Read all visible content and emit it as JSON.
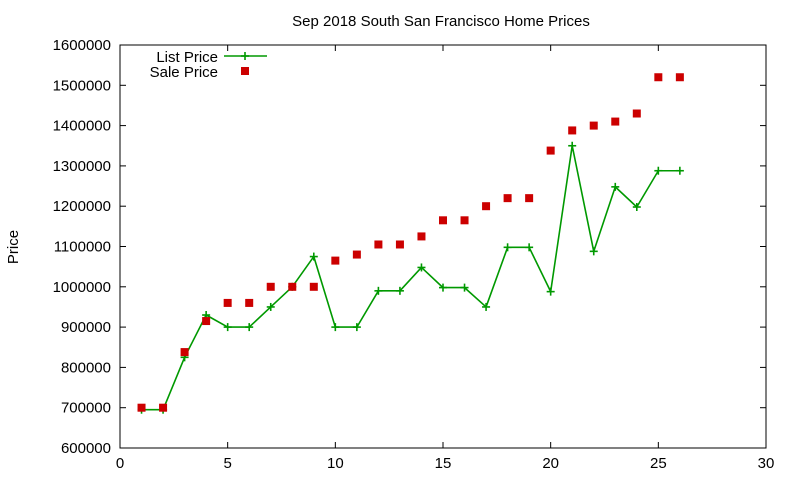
{
  "chart_data": {
    "type": "line",
    "title": "Sep 2018 South San Francisco Home Prices",
    "xlabel": "",
    "ylabel": "Price",
    "xlim": [
      0,
      30
    ],
    "ylim": [
      600000,
      1600000
    ],
    "x_ticks": [
      0,
      5,
      10,
      15,
      20,
      25,
      30
    ],
    "y_ticks": [
      600000,
      700000,
      800000,
      900000,
      1000000,
      1100000,
      1200000,
      1300000,
      1400000,
      1500000,
      1600000
    ],
    "grid": false,
    "legend_position": "top-left",
    "x": [
      1,
      2,
      3,
      4,
      5,
      6,
      7,
      8,
      9,
      10,
      11,
      12,
      13,
      14,
      15,
      16,
      17,
      18,
      19,
      20,
      21,
      22,
      23,
      24,
      25,
      26
    ],
    "series": [
      {
        "name": "List Price",
        "style": "line-with-plus-markers",
        "color": "#009900",
        "values": [
          695000,
          695000,
          825000,
          930000,
          900000,
          900000,
          950000,
          1000000,
          1075000,
          900000,
          900000,
          990000,
          990000,
          1048000,
          998000,
          998000,
          950000,
          1098000,
          1098000,
          988000,
          1350000,
          1088000,
          1248000,
          1198000,
          1288000,
          1288000
        ]
      },
      {
        "name": "Sale Price",
        "style": "square-markers",
        "color": "#cc0000",
        "values": [
          700000,
          700000,
          838000,
          915000,
          960000,
          960000,
          1000000,
          1000000,
          1000000,
          1065000,
          1080000,
          1105000,
          1105000,
          1125000,
          1165000,
          1165000,
          1200000,
          1220000,
          1220000,
          1338000,
          1388000,
          1400000,
          1410000,
          1430000,
          1520000,
          1520000
        ]
      }
    ]
  }
}
